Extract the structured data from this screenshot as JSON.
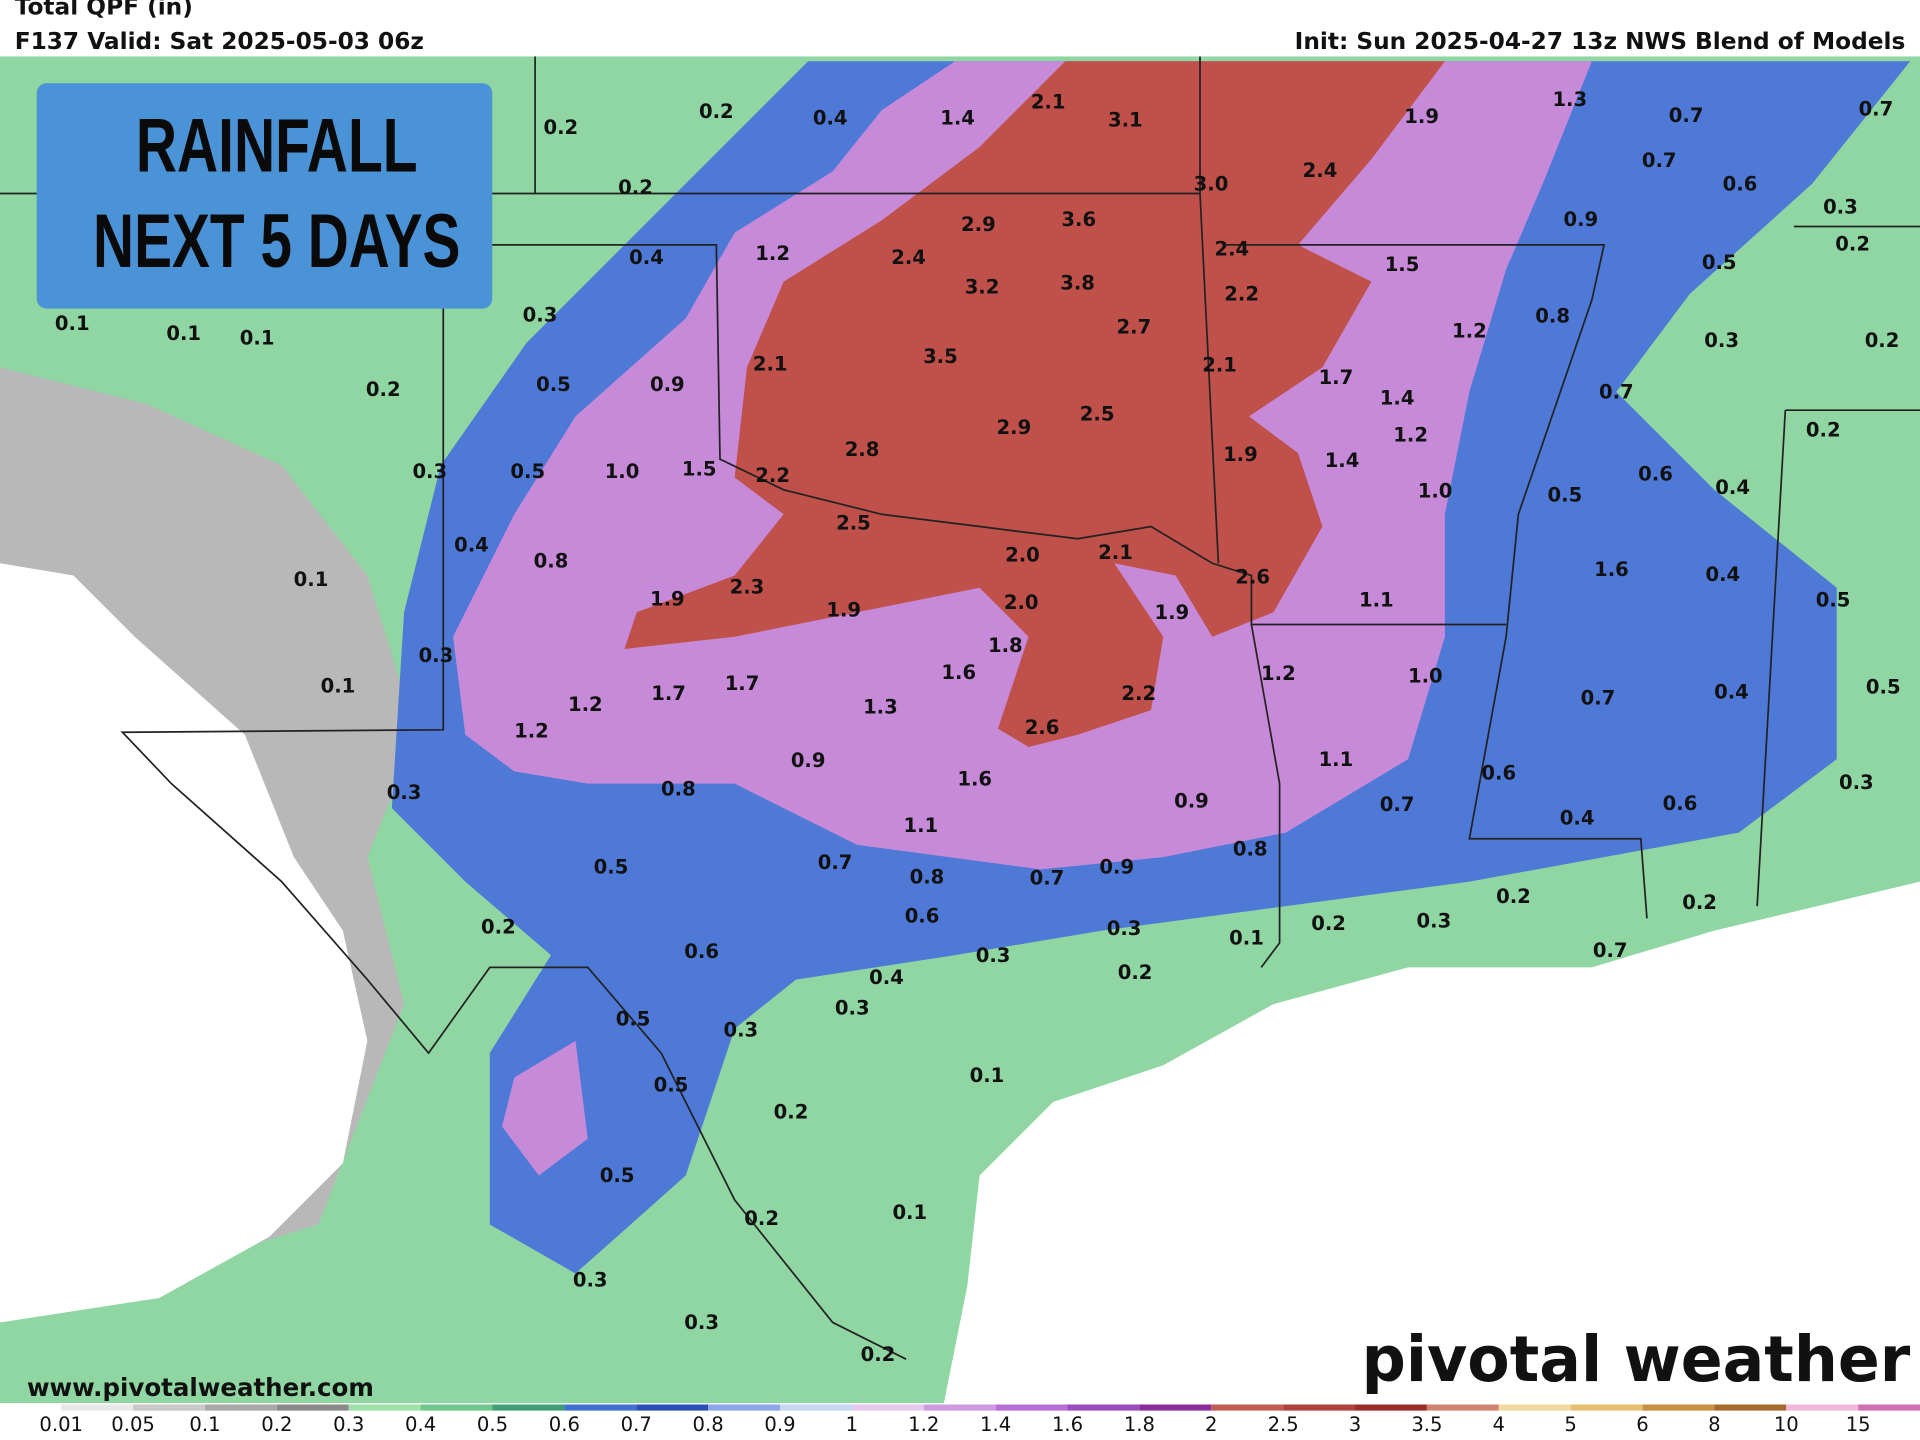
{
  "header": {
    "title": "Total QPF (in)",
    "valid": "F137 Valid: Sat 2025-05-03 06z",
    "init": "Init: Sun 2025-04-27 13z NWS Blend of Models"
  },
  "badge": {
    "line1": "RAINFALL",
    "line2": "NEXT 5 DAYS"
  },
  "map": {
    "labels": [
      "0.2",
      "0.2",
      "0.4",
      "1.4",
      "2.1",
      "3.1",
      "1.9",
      "1.3",
      "0.7",
      "0.7",
      "0.2",
      "3.0",
      "2.4",
      "0.7",
      "0.6",
      "0.3",
      "2.9",
      "3.6",
      "0.9",
      "0.2",
      "0.4",
      "1.2",
      "2.4",
      "2.4",
      "1.5",
      "0.5",
      "3.2",
      "3.8",
      "2.2",
      "0.1",
      "0.1",
      "0.1",
      "0.3",
      "2.7",
      "1.2",
      "0.8",
      "0.3",
      "0.2",
      "3.5",
      "2.1",
      "2.1",
      "0.2",
      "0.5",
      "0.9",
      "1.7",
      "0.7",
      "2.5",
      "2.9",
      "1.4",
      "1.2",
      "0.2",
      "2.8",
      "1.9",
      "1.4",
      "0.3",
      "0.5",
      "1.0",
      "1.5",
      "2.2",
      "0.6",
      "1.0",
      "0.5",
      "0.4",
      "2.5",
      "0.4",
      "0.8",
      "2.0",
      "2.1",
      "2.6",
      "1.6",
      "0.4",
      "0.1",
      "1.9",
      "2.3",
      "1.9",
      "2.0",
      "1.9",
      "1.1",
      "0.5",
      "0.3",
      "1.8",
      "1.2",
      "1.0",
      "0.5",
      "0.1",
      "1.6",
      "2.2",
      "0.7",
      "0.4",
      "1.2",
      "1.7",
      "1.7",
      "1.3",
      "1.2",
      "2.6",
      "1.1",
      "0.3",
      "0.8",
      "0.9",
      "1.6",
      "0.6",
      "0.3",
      "0.9",
      "0.7",
      "0.6",
      "0.4",
      "1.1",
      "0.8",
      "0.5",
      "0.7",
      "0.8",
      "0.7",
      "0.9",
      "0.2",
      "0.2",
      "0.2",
      "0.6",
      "0.3",
      "0.1",
      "0.2",
      "0.3",
      "0.7",
      "0.6",
      "0.3",
      "0.4",
      "0.2",
      "0.5",
      "0.3",
      "0.3",
      "0.1",
      "0.5",
      "0.2",
      "0.5",
      "0.2",
      "0.1",
      "0.3",
      "0.3",
      "0.2"
    ]
  },
  "legend": {
    "ticks": [
      "0.01",
      "0.05",
      "0.1",
      "0.2",
      "0.3",
      "0.4",
      "0.5",
      "0.6",
      "0.7",
      "0.8",
      "0.9",
      "1",
      "1.2",
      "1.4",
      "1.6",
      "1.8",
      "2",
      "2.5",
      "3",
      "3.5",
      "4",
      "5",
      "6",
      "8",
      "10",
      "15"
    ]
  },
  "footer": {
    "url": "www.pivotalweather.com",
    "brand": "pivotal weather"
  }
}
